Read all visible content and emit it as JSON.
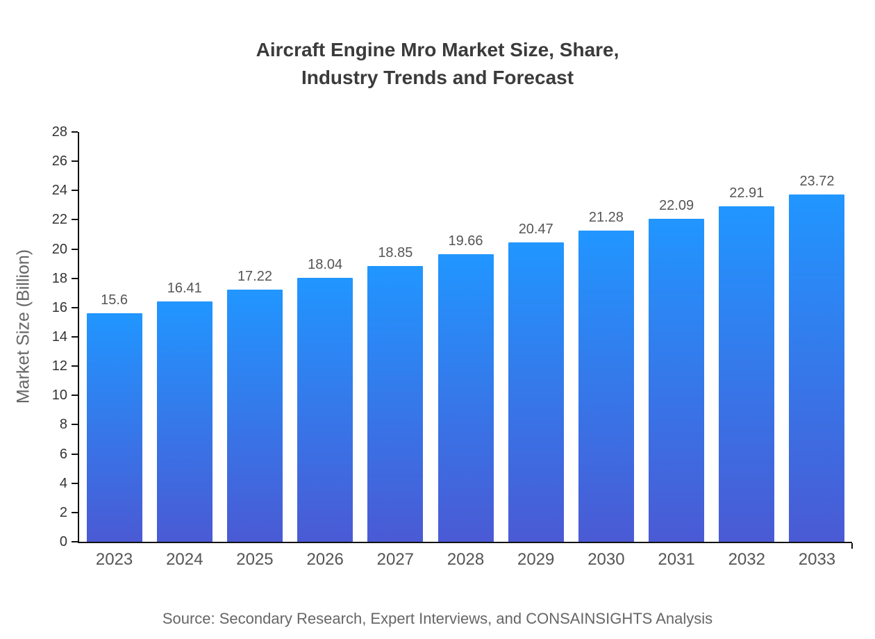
{
  "title_lines": [
    "Aircraft Engine Mro Market Size, Share,",
    "Industry Trends and Forecast"
  ],
  "source": "Source: Secondary Research, Expert Interviews, and CONSAINSIGHTS Analysis",
  "chart_data": {
    "type": "bar",
    "title": "Aircraft Engine Mro Market Size, Share, Industry Trends and Forecast",
    "categories": [
      "2023",
      "2024",
      "2025",
      "2026",
      "2027",
      "2028",
      "2029",
      "2030",
      "2031",
      "2032",
      "2033"
    ],
    "values": [
      15.6,
      16.41,
      17.22,
      18.04,
      18.85,
      19.66,
      20.47,
      21.28,
      22.09,
      22.91,
      23.72
    ],
    "value_labels": [
      "15.6",
      "16.41",
      "17.22",
      "18.04",
      "18.85",
      "19.66",
      "20.47",
      "21.28",
      "22.09",
      "22.91",
      "23.72"
    ],
    "xlabel": "",
    "ylabel": "Market Size (Billion)",
    "ylim": [
      0,
      28
    ],
    "y_tick_step": 2,
    "grid": false,
    "legend": "none",
    "bar_gradient": {
      "top": "#2196ff",
      "bottom": "#4a5ad4"
    }
  }
}
